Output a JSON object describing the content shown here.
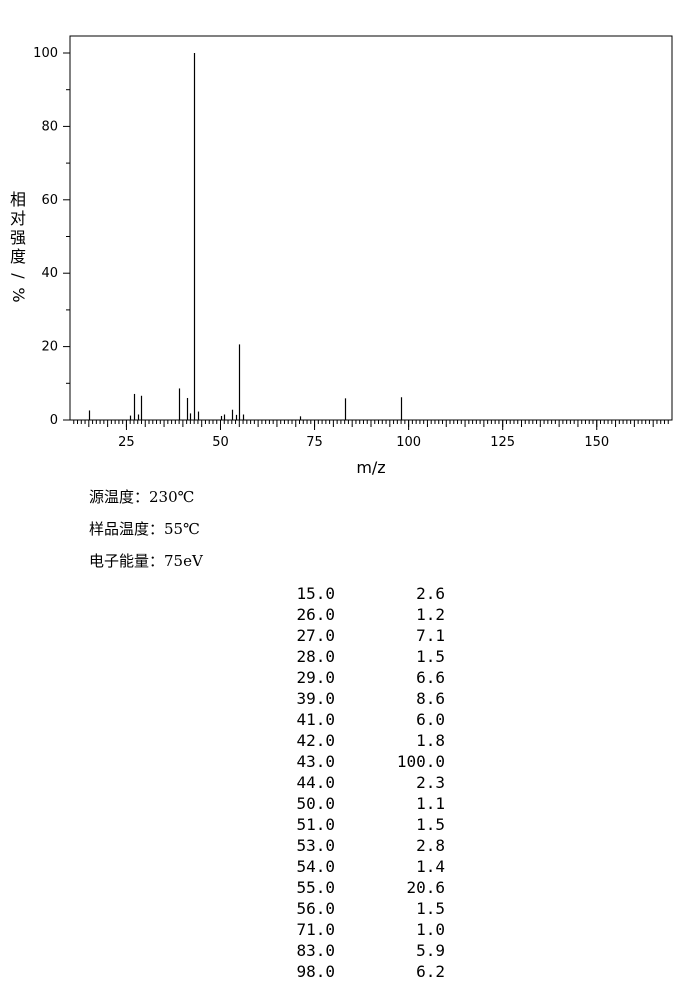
{
  "chart_data": {
    "type": "bar",
    "xlabel": "m/z",
    "ylabel": "相对强度/%",
    "xlim": [
      10,
      170
    ],
    "ylim": [
      0,
      100
    ],
    "x_ticks": [
      25,
      50,
      75,
      100,
      125,
      150
    ],
    "y_ticks": [
      0,
      20,
      40,
      60,
      80,
      100
    ],
    "grid": false,
    "peaks": [
      {
        "mz": 15,
        "intensity": 2.6
      },
      {
        "mz": 26,
        "intensity": 1.2
      },
      {
        "mz": 27,
        "intensity": 7.1
      },
      {
        "mz": 28,
        "intensity": 1.5
      },
      {
        "mz": 29,
        "intensity": 6.6
      },
      {
        "mz": 39,
        "intensity": 8.6
      },
      {
        "mz": 41,
        "intensity": 6.0
      },
      {
        "mz": 42,
        "intensity": 1.8
      },
      {
        "mz": 43,
        "intensity": 100.0
      },
      {
        "mz": 44,
        "intensity": 2.3
      },
      {
        "mz": 50,
        "intensity": 1.1
      },
      {
        "mz": 51,
        "intensity": 1.5
      },
      {
        "mz": 53,
        "intensity": 2.8
      },
      {
        "mz": 54,
        "intensity": 1.4
      },
      {
        "mz": 55,
        "intensity": 20.6
      },
      {
        "mz": 56,
        "intensity": 1.5
      },
      {
        "mz": 71,
        "intensity": 1.0
      },
      {
        "mz": 83,
        "intensity": 5.9
      },
      {
        "mz": 98,
        "intensity": 6.2
      }
    ]
  },
  "conditions": {
    "source_temp": "源温度：230℃",
    "sample_temp": "样品温度：55℃",
    "electron_energy": "电子能量：75eV"
  },
  "table": [
    {
      "mz": "15.0",
      "intensity": "2.6"
    },
    {
      "mz": "26.0",
      "intensity": "1.2"
    },
    {
      "mz": "27.0",
      "intensity": "7.1"
    },
    {
      "mz": "28.0",
      "intensity": "1.5"
    },
    {
      "mz": "29.0",
      "intensity": "6.6"
    },
    {
      "mz": "39.0",
      "intensity": "8.6"
    },
    {
      "mz": "41.0",
      "intensity": "6.0"
    },
    {
      "mz": "42.0",
      "intensity": "1.8"
    },
    {
      "mz": "43.0",
      "intensity": "100.0"
    },
    {
      "mz": "44.0",
      "intensity": "2.3"
    },
    {
      "mz": "50.0",
      "intensity": "1.1"
    },
    {
      "mz": "51.0",
      "intensity": "1.5"
    },
    {
      "mz": "53.0",
      "intensity": "2.8"
    },
    {
      "mz": "54.0",
      "intensity": "1.4"
    },
    {
      "mz": "55.0",
      "intensity": "20.6"
    },
    {
      "mz": "56.0",
      "intensity": "1.5"
    },
    {
      "mz": "71.0",
      "intensity": "1.0"
    },
    {
      "mz": "83.0",
      "intensity": "5.9"
    },
    {
      "mz": "98.0",
      "intensity": "6.2"
    }
  ]
}
